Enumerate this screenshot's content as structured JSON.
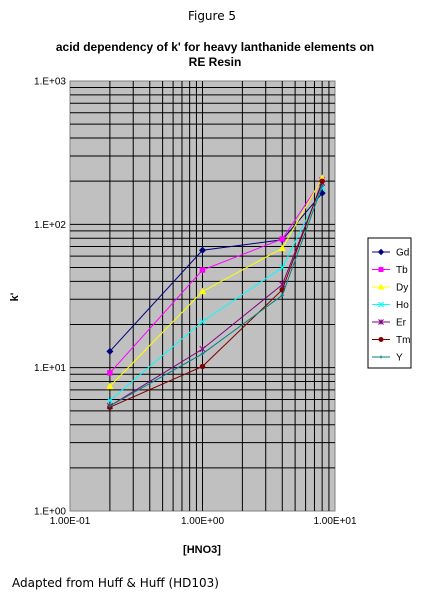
{
  "figure_label": "Figure 5",
  "footer_note": "Adapted from Huff & Huff (HD103)",
  "chart_data": {
    "type": "line",
    "title_lines": [
      "acid dependency of k' for heavy lanthanide elements on",
      "RE Resin"
    ],
    "xlabel": "[HNO3]",
    "ylabel": "k'",
    "x_scale": "log",
    "y_scale": "log",
    "xlim": [
      0.1,
      10
    ],
    "ylim": [
      1,
      1000
    ],
    "x_tick_labels": [
      "1.00E-01",
      "1.00E+00",
      "1.00E+01"
    ],
    "y_tick_labels": [
      "1.E+00",
      "1.E+01",
      "1.E+02",
      "1.E+03"
    ],
    "grid": true,
    "plot_background": "#c0c0c0",
    "legend_position": "right",
    "x": [
      0.2,
      1,
      4,
      8
    ],
    "series": [
      {
        "name": "Gd",
        "color": "#000080",
        "marker": "diamond",
        "values": [
          13,
          66,
          78,
          165
        ]
      },
      {
        "name": "Tb",
        "color": "#ff00ff",
        "marker": "square",
        "values": [
          9.2,
          48,
          79,
          205
        ]
      },
      {
        "name": "Dy",
        "color": "#ffff00",
        "marker": "triangle",
        "values": [
          7.4,
          34,
          68,
          210
        ]
      },
      {
        "name": "Ho",
        "color": "#00ffff",
        "marker": "x",
        "values": [
          5.9,
          21,
          50,
          180
        ]
      },
      {
        "name": "Er",
        "color": "#800080",
        "marker": "star",
        "values": [
          5.4,
          13.5,
          38,
          195
        ]
      },
      {
        "name": "Tm",
        "color": "#800000",
        "marker": "circle",
        "values": [
          5.3,
          10.2,
          35,
          200
        ]
      },
      {
        "name": "Y",
        "color": "#008080",
        "marker": "plus",
        "values": [
          5.4,
          12.5,
          32,
          185
        ]
      }
    ]
  }
}
